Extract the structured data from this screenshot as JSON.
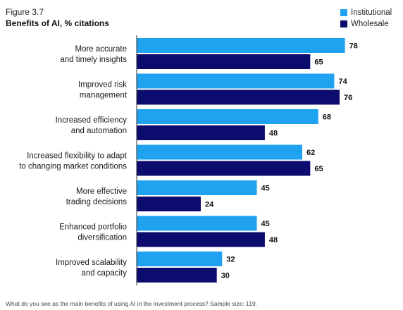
{
  "figure": {
    "label": "Figure 3.7",
    "title": "Benefits of AI, % citations",
    "footnote": "What do you see as the main benefits of using AI in the investment process? Sample size: 119."
  },
  "legend": {
    "items": [
      {
        "label": "Institutional",
        "color": "#1fa3f0"
      },
      {
        "label": "Wholesale",
        "color": "#0b0c6e"
      }
    ]
  },
  "chart_data": {
    "type": "bar",
    "orientation": "horizontal",
    "title": "Benefits of AI, % citations",
    "categories": [
      [
        "More accurate",
        "and timely insights"
      ],
      [
        "Improved risk",
        "management"
      ],
      [
        "Increased efficiency",
        "and automation"
      ],
      [
        "Increased flexibility to adapt",
        "to changing market conditions"
      ],
      [
        "More effective",
        "trading decisions"
      ],
      [
        "Enhanced portfolio",
        "diversification"
      ],
      [
        "Improved scalability",
        "and capacity"
      ]
    ],
    "series": [
      {
        "name": "Institutional",
        "color": "#1fa3f0",
        "values": [
          78,
          74,
          68,
          62,
          45,
          45,
          32
        ]
      },
      {
        "name": "Wholesale",
        "color": "#0b0c6e",
        "values": [
          65,
          76,
          48,
          65,
          24,
          48,
          30
        ]
      }
    ],
    "xlim": [
      0,
      80
    ],
    "grid": false,
    "legend_position": "top-right",
    "data_labels": true
  }
}
